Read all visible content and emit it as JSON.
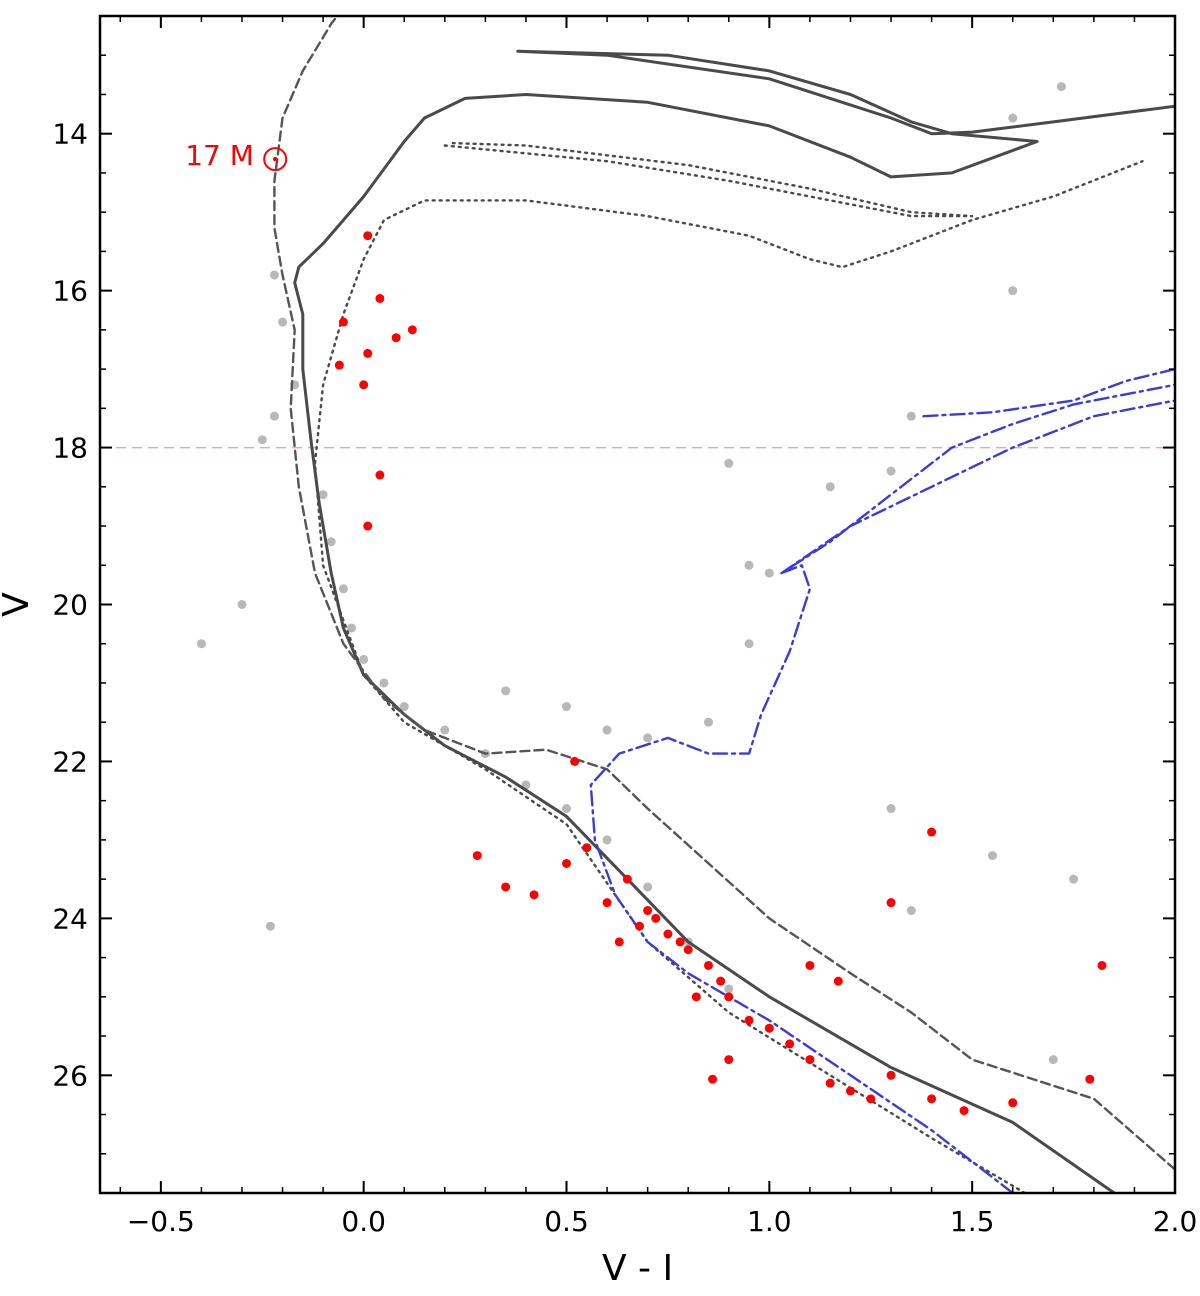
{
  "chart_data": {
    "type": "scatter",
    "title": "",
    "xlabel": "V - I",
    "ylabel": "V",
    "xlim": [
      -0.65,
      2.0
    ],
    "ylim": [
      27.5,
      12.5
    ],
    "y_inverted": true,
    "grid": false,
    "xticks": [
      -0.5,
      0.0,
      0.5,
      1.0,
      1.5,
      2.0
    ],
    "xtick_labels": [
      "−0.5",
      "0.0",
      "0.5",
      "1.0",
      "1.5",
      "2.0"
    ],
    "yticks": [
      14,
      16,
      18,
      20,
      22,
      24,
      26
    ],
    "ytick_labels": [
      "14",
      "16",
      "18",
      "20",
      "22",
      "24",
      "26"
    ],
    "annotations": [
      {
        "text": "17 M",
        "symbol": "sun-symbol",
        "color": "#ff0000",
        "x": -0.44,
        "y": 14.4
      }
    ],
    "reference_lines": [
      {
        "orientation": "horizontal",
        "y": 18.0,
        "style": "dashed",
        "color": "#f4a6a6"
      }
    ],
    "series": [
      {
        "style": "scatter",
        "color": "#b8b8b8",
        "description_points": "field stars",
        "points": [
          [
            -0.1,
            18.6
          ],
          [
            -0.08,
            19.2
          ],
          [
            -0.05,
            19.8
          ],
          [
            -0.03,
            20.3
          ],
          [
            0.0,
            20.7
          ],
          [
            0.05,
            21.0
          ],
          [
            0.1,
            21.3
          ],
          [
            0.2,
            21.6
          ],
          [
            0.3,
            21.9
          ],
          [
            0.4,
            22.3
          ],
          [
            0.5,
            22.6
          ],
          [
            0.6,
            23.0
          ],
          [
            0.7,
            23.6
          ],
          [
            0.8,
            24.3
          ],
          [
            0.9,
            24.9
          ],
          [
            1.0,
            25.4
          ],
          [
            1.1,
            25.8
          ],
          [
            1.2,
            26.2
          ],
          [
            0.35,
            21.1
          ],
          [
            0.5,
            21.3
          ],
          [
            0.6,
            21.6
          ],
          [
            0.7,
            21.7
          ],
          [
            0.85,
            21.5
          ],
          [
            0.95,
            20.5
          ],
          [
            0.95,
            19.5
          ],
          [
            1.0,
            19.6
          ],
          [
            0.9,
            18.2
          ],
          [
            1.15,
            18.5
          ],
          [
            1.3,
            18.3
          ],
          [
            1.35,
            17.6
          ],
          [
            -0.22,
            15.8
          ],
          [
            -0.2,
            16.4
          ],
          [
            -0.17,
            17.2
          ],
          [
            -0.22,
            17.6
          ],
          [
            -0.25,
            17.9
          ],
          [
            -0.4,
            20.5
          ],
          [
            -0.3,
            20.0
          ],
          [
            -0.23,
            24.1
          ],
          [
            1.6,
            16.0
          ],
          [
            1.72,
            13.4
          ],
          [
            1.6,
            13.8
          ],
          [
            1.3,
            22.6
          ],
          [
            1.55,
            23.2
          ],
          [
            1.35,
            23.9
          ],
          [
            1.75,
            23.5
          ],
          [
            1.7,
            25.8
          ]
        ]
      },
      {
        "style": "scatter",
        "color": "#ff0000",
        "description_points": "highlighted stars",
        "points": [
          [
            0.01,
            15.3
          ],
          [
            0.04,
            16.1
          ],
          [
            -0.05,
            16.4
          ],
          [
            0.12,
            16.5
          ],
          [
            0.08,
            16.6
          ],
          [
            -0.06,
            16.95
          ],
          [
            0.01,
            16.8
          ],
          [
            0.0,
            17.2
          ],
          [
            0.04,
            18.35
          ],
          [
            0.01,
            19.0
          ],
          [
            0.52,
            22.0
          ],
          [
            0.28,
            23.2
          ],
          [
            0.35,
            23.6
          ],
          [
            0.42,
            23.7
          ],
          [
            0.5,
            23.3
          ],
          [
            0.55,
            23.1
          ],
          [
            0.6,
            23.8
          ],
          [
            0.65,
            23.5
          ],
          [
            0.7,
            23.9
          ],
          [
            0.72,
            24.0
          ],
          [
            0.75,
            24.2
          ],
          [
            0.78,
            24.3
          ],
          [
            0.8,
            24.4
          ],
          [
            0.68,
            24.1
          ],
          [
            0.63,
            24.3
          ],
          [
            0.85,
            24.6
          ],
          [
            0.88,
            24.8
          ],
          [
            0.9,
            25.0
          ],
          [
            0.82,
            25.0
          ],
          [
            0.95,
            25.3
          ],
          [
            1.0,
            25.4
          ],
          [
            1.05,
            25.6
          ],
          [
            0.9,
            25.8
          ],
          [
            0.86,
            26.05
          ],
          [
            1.1,
            25.8
          ],
          [
            1.15,
            26.1
          ],
          [
            1.2,
            26.2
          ],
          [
            1.25,
            26.3
          ],
          [
            1.3,
            26.0
          ],
          [
            1.4,
            26.3
          ],
          [
            1.48,
            26.45
          ],
          [
            1.6,
            26.35
          ],
          [
            1.79,
            26.05
          ],
          [
            1.82,
            24.6
          ],
          [
            1.4,
            22.9
          ],
          [
            1.3,
            23.8
          ],
          [
            1.1,
            24.6
          ],
          [
            1.17,
            24.8
          ]
        ]
      },
      {
        "style": "solid-line",
        "color": "#4a4a4a",
        "description_points": "isochrone main sequence + giant loop",
        "points": [
          [
            1.85,
            27.5
          ],
          [
            1.6,
            26.6
          ],
          [
            1.3,
            25.9
          ],
          [
            1.0,
            25.0
          ],
          [
            0.8,
            24.3
          ],
          [
            0.65,
            23.5
          ],
          [
            0.5,
            22.7
          ],
          [
            0.35,
            22.2
          ],
          [
            0.2,
            21.8
          ],
          [
            0.1,
            21.4
          ],
          [
            0.0,
            20.9
          ],
          [
            -0.05,
            20.3
          ],
          [
            -0.08,
            19.6
          ],
          [
            -0.11,
            18.7
          ],
          [
            -0.13,
            17.9
          ],
          [
            -0.15,
            17.0
          ],
          [
            -0.15,
            16.3
          ],
          [
            -0.17,
            15.9
          ],
          [
            -0.16,
            15.7
          ],
          [
            -0.1,
            15.4
          ],
          [
            0.0,
            14.8
          ],
          [
            0.1,
            14.1
          ],
          [
            0.15,
            13.8
          ],
          [
            0.25,
            13.55
          ],
          [
            0.4,
            13.5
          ],
          [
            0.7,
            13.6
          ],
          [
            1.0,
            13.9
          ],
          [
            1.2,
            14.3
          ],
          [
            1.3,
            14.55
          ],
          [
            1.45,
            14.5
          ],
          [
            1.66,
            14.1
          ],
          [
            1.45,
            14.0
          ],
          [
            1.35,
            13.85
          ],
          [
            1.2,
            13.5
          ],
          [
            1.0,
            13.2
          ],
          [
            0.75,
            13.0
          ],
          [
            0.38,
            12.95
          ],
          [
            0.6,
            13.0
          ],
          [
            1.0,
            13.3
          ],
          [
            1.3,
            13.8
          ],
          [
            1.4,
            14.0
          ],
          [
            1.5,
            13.98
          ],
          [
            1.7,
            13.85
          ],
          [
            2.0,
            13.65
          ]
        ]
      },
      {
        "style": "dotted-line",
        "color": "#4a4a4a",
        "description_points": "isochrone dotted",
        "points": [
          [
            1.63,
            27.5
          ],
          [
            1.4,
            26.8
          ],
          [
            1.15,
            26.0
          ],
          [
            0.9,
            25.2
          ],
          [
            0.7,
            24.3
          ],
          [
            0.5,
            22.8
          ],
          [
            0.3,
            22.1
          ],
          [
            0.1,
            21.5
          ],
          [
            0.0,
            20.9
          ],
          [
            -0.1,
            19.5
          ],
          [
            -0.12,
            18.2
          ],
          [
            -0.1,
            17.2
          ],
          [
            -0.05,
            16.3
          ],
          [
            0.0,
            15.6
          ],
          [
            0.05,
            15.1
          ],
          [
            0.15,
            14.85
          ],
          [
            0.4,
            14.85
          ],
          [
            0.7,
            15.05
          ],
          [
            0.95,
            15.3
          ],
          [
            1.1,
            15.6
          ],
          [
            1.18,
            15.7
          ],
          [
            1.3,
            15.5
          ],
          [
            1.5,
            15.1
          ],
          [
            1.7,
            14.8
          ],
          [
            1.92,
            14.35
          ]
        ]
      },
      {
        "style": "dotted-line",
        "color": "#4a4a4a",
        "description_points": "isochrone dotted upper loop",
        "points": [
          [
            0.2,
            14.15
          ],
          [
            0.6,
            14.35
          ],
          [
            0.9,
            14.6
          ],
          [
            1.15,
            14.85
          ],
          [
            1.35,
            15.05
          ],
          [
            1.5,
            15.05
          ],
          [
            1.35,
            15.0
          ],
          [
            1.1,
            14.7
          ],
          [
            0.8,
            14.4
          ],
          [
            0.4,
            14.15
          ],
          [
            0.22,
            14.12
          ]
        ]
      },
      {
        "style": "dashed-line",
        "color": "#555555",
        "description_points": "isochrone dashed",
        "points": [
          [
            2.0,
            27.2
          ],
          [
            1.8,
            26.3
          ],
          [
            1.5,
            25.8
          ],
          [
            1.35,
            25.2
          ],
          [
            1.2,
            24.7
          ],
          [
            1.0,
            24.0
          ],
          [
            0.85,
            23.3
          ],
          [
            0.7,
            22.6
          ],
          [
            0.6,
            22.1
          ],
          [
            0.45,
            21.85
          ],
          [
            0.3,
            21.9
          ],
          [
            0.15,
            21.6
          ],
          [
            0.05,
            21.2
          ],
          [
            -0.05,
            20.5
          ],
          [
            -0.12,
            19.6
          ],
          [
            -0.16,
            18.5
          ],
          [
            -0.18,
            17.5
          ],
          [
            -0.17,
            16.5
          ],
          [
            -0.2,
            15.8
          ],
          [
            -0.22,
            15.2
          ],
          [
            -0.22,
            14.6
          ],
          [
            -0.21,
            14.2
          ],
          [
            -0.2,
            13.8
          ],
          [
            -0.15,
            13.2
          ],
          [
            -0.08,
            12.6
          ],
          [
            -0.05,
            12.4
          ]
        ]
      },
      {
        "style": "dashdot-line",
        "color": "#3b3bdb",
        "description_points": "blue isochrone",
        "points": [
          [
            1.6,
            27.5
          ],
          [
            1.4,
            26.7
          ],
          [
            1.2,
            26.0
          ],
          [
            1.0,
            25.3
          ],
          [
            0.8,
            24.7
          ],
          [
            0.7,
            24.3
          ],
          [
            0.62,
            23.7
          ],
          [
            0.57,
            23.0
          ],
          [
            0.56,
            22.3
          ],
          [
            0.63,
            21.9
          ],
          [
            0.75,
            21.7
          ],
          [
            0.85,
            21.9
          ],
          [
            0.95,
            21.9
          ],
          [
            0.98,
            21.4
          ],
          [
            1.05,
            20.6
          ],
          [
            1.1,
            19.8
          ],
          [
            1.08,
            19.5
          ],
          [
            1.03,
            19.6
          ],
          [
            1.15,
            19.2
          ],
          [
            1.3,
            18.6
          ],
          [
            1.45,
            18.0
          ],
          [
            1.6,
            17.7
          ],
          [
            1.75,
            17.45
          ],
          [
            2.0,
            17.2
          ]
        ]
      },
      {
        "style": "dashdot-line",
        "color": "#3b3bdb",
        "description_points": "blue isochrone branches",
        "points": [
          [
            1.03,
            19.6
          ],
          [
            1.2,
            19.0
          ],
          [
            1.4,
            18.5
          ],
          [
            1.6,
            18.0
          ],
          [
            1.8,
            17.6
          ],
          [
            2.0,
            17.4
          ]
        ]
      },
      {
        "style": "dashdot-line",
        "color": "#3b3bdb",
        "description_points": "blue isochrone upper branch",
        "points": [
          [
            1.38,
            17.6
          ],
          [
            1.55,
            17.55
          ],
          [
            1.75,
            17.4
          ],
          [
            1.88,
            17.15
          ],
          [
            2.0,
            17.0
          ]
        ]
      }
    ]
  }
}
